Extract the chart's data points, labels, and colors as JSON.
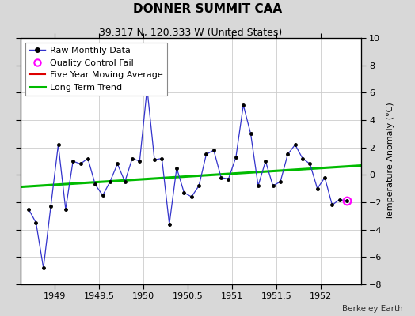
{
  "title": "DONNER SUMMIT CAA",
  "subtitle": "39.317 N, 120.333 W (United States)",
  "watermark": "Berkeley Earth",
  "ylabel": "Temperature Anomaly (°C)",
  "xlim": [
    1948.62,
    1952.45
  ],
  "ylim": [
    -8,
    10
  ],
  "yticks": [
    -8,
    -6,
    -4,
    -2,
    0,
    2,
    4,
    6,
    8,
    10
  ],
  "xticks": [
    1949,
    1949.5,
    1950,
    1950.5,
    1951,
    1951.5,
    1952
  ],
  "xtick_labels": [
    "1949",
    "1949.5",
    "1950",
    "1950.5",
    "1951",
    "1951.5",
    "1952"
  ],
  "background_color": "#d8d8d8",
  "plot_bg_color": "#ffffff",
  "raw_data_x": [
    1948.708,
    1948.792,
    1948.875,
    1948.958,
    1949.042,
    1949.125,
    1949.208,
    1949.292,
    1949.375,
    1949.458,
    1949.542,
    1949.625,
    1949.708,
    1949.792,
    1949.875,
    1949.958,
    1950.042,
    1950.125,
    1950.208,
    1950.292,
    1950.375,
    1950.458,
    1950.542,
    1950.625,
    1950.708,
    1950.792,
    1950.875,
    1950.958,
    1951.042,
    1951.125,
    1951.208,
    1951.292,
    1951.375,
    1951.458,
    1951.542,
    1951.625,
    1951.708,
    1951.792,
    1951.875,
    1951.958,
    1952.042,
    1952.125,
    1952.208,
    1952.292
  ],
  "raw_data_y": [
    -2.5,
    -3.5,
    -6.8,
    -2.3,
    2.2,
    -2.5,
    1.0,
    0.8,
    1.2,
    -0.7,
    -1.5,
    -0.5,
    0.8,
    -0.5,
    1.2,
    1.0,
    6.3,
    1.1,
    1.2,
    -3.6,
    0.5,
    -1.3,
    -1.6,
    -0.8,
    1.5,
    1.8,
    -0.2,
    -0.3,
    1.3,
    5.1,
    3.0,
    -0.8,
    1.0,
    -0.8,
    -0.5,
    1.5,
    2.2,
    1.2,
    0.8,
    -1.0,
    -0.2,
    -2.2,
    -1.8,
    -1.9
  ],
  "qc_fail_x": [
    1952.292
  ],
  "qc_fail_y": [
    -1.9
  ],
  "trend_x": [
    1948.62,
    1952.45
  ],
  "trend_y": [
    -0.88,
    0.68
  ],
  "raw_color": "#3333cc",
  "raw_marker_color": "#000000",
  "qc_color": "#ff00ff",
  "trend_color": "#00bb00",
  "five_yr_color": "#dd0000",
  "title_fontsize": 11,
  "subtitle_fontsize": 9,
  "legend_fontsize": 8,
  "tick_fontsize": 8,
  "ylabel_fontsize": 8
}
